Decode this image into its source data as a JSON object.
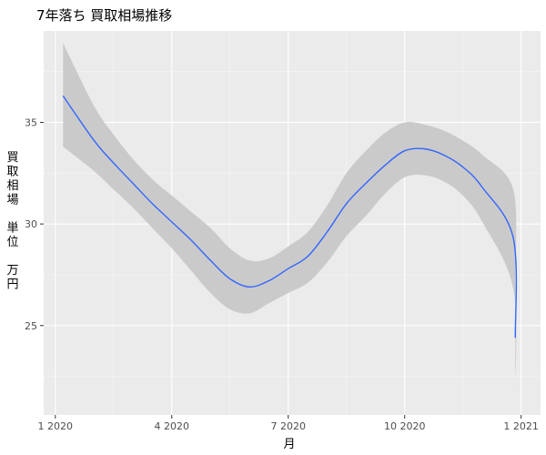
{
  "chart_data": {
    "type": "line",
    "title": "7年落ち 買取相場推移",
    "xlabel": "月",
    "ylabel": "買取相場 単位 万円",
    "x_tick_labels": [
      "1 2020",
      "4 2020",
      "7 2020",
      "10 2020",
      "1 2021"
    ],
    "x_tick_values": [
      0,
      3,
      6,
      9,
      12
    ],
    "xlim": [
      -0.3,
      12.5
    ],
    "y_tick_labels": [
      "25",
      "30",
      "35"
    ],
    "y_tick_values": [
      25,
      30,
      35
    ],
    "ylim": [
      20.6,
      39.5
    ],
    "grid": true,
    "smooth": {
      "name": "loess",
      "color": "#3366FF",
      "band_color": "#C8C8C8",
      "x": [
        0.2,
        1.0,
        1.5,
        2.0,
        2.5,
        3.0,
        3.5,
        4.0,
        4.5,
        5.0,
        5.5,
        6.0,
        6.5,
        7.0,
        7.5,
        8.0,
        8.5,
        9.0,
        9.5,
        10.0,
        10.5,
        11.0,
        11.8
      ],
      "y": [
        36.3,
        34.1,
        33.0,
        32.0,
        31.0,
        30.1,
        29.2,
        28.2,
        27.3,
        26.9,
        27.2,
        27.8,
        28.4,
        29.6,
        31.0,
        32.0,
        32.9,
        33.6,
        33.7,
        33.4,
        32.8,
        31.8,
        29.3
      ],
      "lower": [
        33.8,
        32.6,
        31.7,
        30.8,
        29.8,
        28.8,
        27.7,
        26.6,
        25.8,
        25.6,
        26.1,
        26.6,
        27.1,
        28.1,
        29.4,
        30.4,
        31.5,
        32.3,
        32.4,
        32.1,
        31.4,
        30.1,
        26.8
      ],
      "upper": [
        38.9,
        35.8,
        34.4,
        33.2,
        32.2,
        31.4,
        30.6,
        29.8,
        28.8,
        28.2,
        28.3,
        28.9,
        29.6,
        30.9,
        32.5,
        33.6,
        34.5,
        35.0,
        34.9,
        34.6,
        34.1,
        33.4,
        31.7
      ],
      "end": {
        "x": 11.85,
        "y": 24.4,
        "lower": 21.7,
        "upper": 27.4
      }
    }
  }
}
